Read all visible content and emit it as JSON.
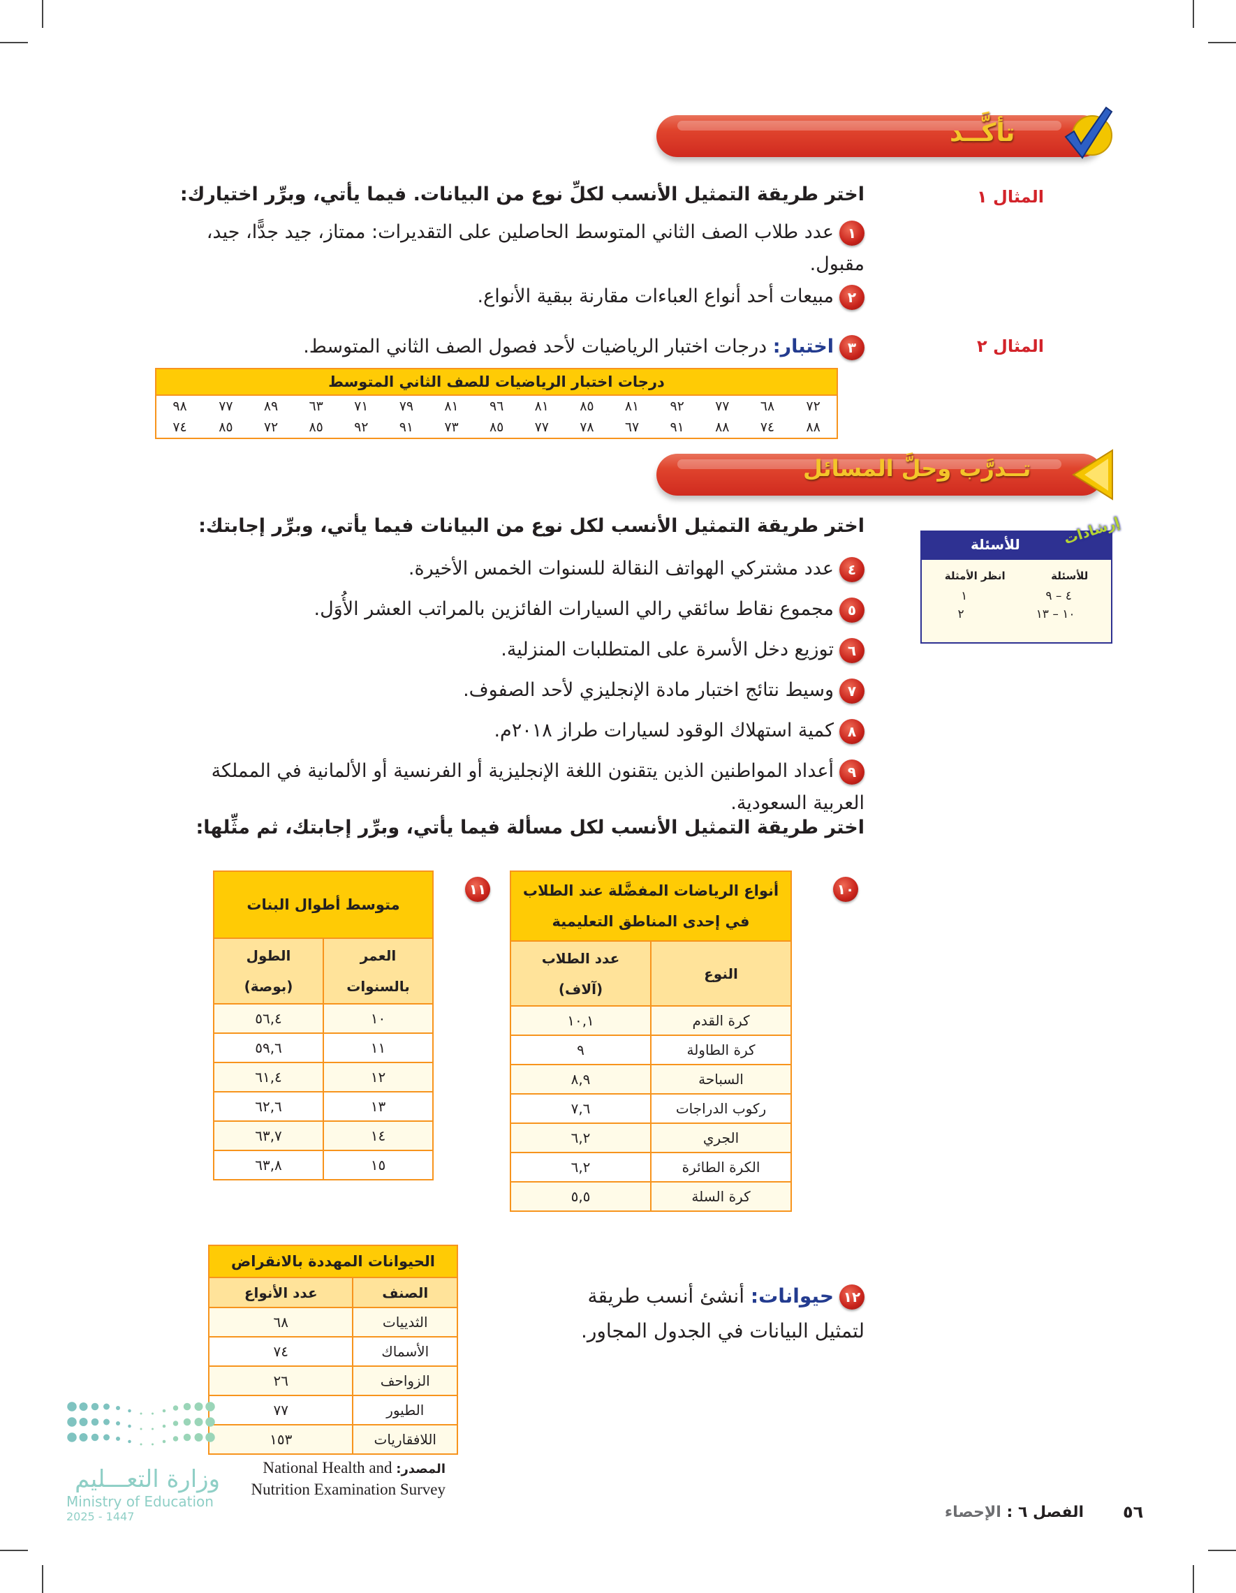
{
  "check_section": {
    "title": "تأكَّــد"
  },
  "example1": {
    "label": "المثال ١",
    "instruction": "اختر طريقة التمثيل الأنسب لكلِّ نوع من البيانات. فيما يأتي، وبرِّر اختيارك:",
    "items": [
      {
        "number": "١",
        "text": "عدد طلاب الصف الثاني المتوسط الحاصلين على التقديرات: ممتاز، جيد جدًّا، جيد، مقبول."
      },
      {
        "number": "٢",
        "text": "مبيعات أحد أنواع العباءات مقارنة ببقية الأنواع."
      }
    ]
  },
  "example2": {
    "label": "المثال ٢",
    "item": {
      "number": "٣",
      "keyword": "اختبار:",
      "text": "درجات اختبار الرياضيات لأحد فصول الصف الثاني المتوسط."
    },
    "table": {
      "title": "درجات اختبار الرياضيات للصف الثاني المتوسط",
      "rows": [
        [
          "٧٢",
          "٦٨",
          "٧٧",
          "٩٢",
          "٨١",
          "٨٥",
          "٨١",
          "٩٦",
          "٨١",
          "٧٩",
          "٧١",
          "٦٣",
          "٨٩",
          "٧٧",
          "٩٨"
        ],
        [
          "٨٨",
          "٧٤",
          "٨٨",
          "٩١",
          "٦٧",
          "٧٨",
          "٧٧",
          "٨٥",
          "٧٣",
          "٩١",
          "٩٢",
          "٨٥",
          "٧٢",
          "٨٥",
          "٧٤"
        ]
      ]
    }
  },
  "practice_section": {
    "title": "تــدرَّب وحلَّ المسائل"
  },
  "hint_box": {
    "tag": "إرشادات",
    "title": "للأسئلة",
    "headers": [
      "للأسئلة",
      "انظر الأمثلة"
    ],
    "rows": [
      [
        "٤ – ٩",
        "١"
      ],
      [
        "١٠ – ١٣",
        "٢"
      ]
    ]
  },
  "practice": {
    "instruction1": "اختر طريقة التمثيل الأنسب لكل نوع من البيانات فيما يأتي، وبرِّر إجابتك:",
    "items": [
      {
        "number": "٤",
        "text": "عدد مشتركي الهواتف النقالة للسنوات الخمس الأخيرة."
      },
      {
        "number": "٥",
        "text": "مجموع نقاط سائقي رالي السيارات الفائزين بالمراتب العشر الأُوَل."
      },
      {
        "number": "٦",
        "text": "توزيع دخل الأسرة على المتطلبات المنزلية."
      },
      {
        "number": "٧",
        "text": "وسيط نتائج اختبار مادة الإنجليزي لأحد الصفوف."
      },
      {
        "number": "٨",
        "text": "كمية استهلاك الوقود لسيارات طراز ٢٠١٨م."
      },
      {
        "number": "٩",
        "text": "أعداد المواطنين الذين يتقنون اللغة الإنجليزية أو الفرنسية أو الألمانية في المملكة العربية السعودية."
      }
    ],
    "instruction2": "اختر طريقة التمثيل الأنسب لكل مسألة فيما يأتي، وبرِّر إجابتك، ثم مثِّلها:"
  },
  "q10": {
    "number": "١٠",
    "title": "أنواع الرياضات المفضَّلة عند الطلاب في إحدى المناطق التعليمية",
    "headers": [
      "النوع",
      "عدد الطلاب (آلاف)"
    ],
    "rows": [
      [
        "كرة القدم",
        "١٠,١"
      ],
      [
        "كرة الطاولة",
        "٩"
      ],
      [
        "السباحة",
        "٨,٩"
      ],
      [
        "ركوب الدراجات",
        "٧,٦"
      ],
      [
        "الجري",
        "٦,٢"
      ],
      [
        "الكرة الطائرة",
        "٦,٢"
      ],
      [
        "كرة السلة",
        "٥,٥"
      ]
    ]
  },
  "q11": {
    "number": "١١",
    "title": "متوسط أطوال البنات",
    "headers": [
      "العمر بالسنوات",
      "الطول (بوصة)"
    ],
    "rows": [
      [
        "١٠",
        "٥٦,٤"
      ],
      [
        "١١",
        "٥٩,٦"
      ],
      [
        "١٢",
        "٦١,٤"
      ],
      [
        "١٣",
        "٦٢,٦"
      ],
      [
        "١٤",
        "٦٣,٧"
      ],
      [
        "١٥",
        "٦٣,٨"
      ]
    ]
  },
  "q12": {
    "number": "١٢",
    "keyword": "حيوانات:",
    "text": "أنشئ أنسب طريقة لتمثيل البيانات في الجدول المجاور.",
    "table": {
      "title": "الحيوانات المهددة بالانقراض",
      "headers": [
        "الصنف",
        "عدد الأنواع"
      ],
      "rows": [
        [
          "الثدييات",
          "٦٨"
        ],
        [
          "الأسماك",
          "٧٤"
        ],
        [
          "الزواحف",
          "٢٦"
        ],
        [
          "الطيور",
          "٧٧"
        ],
        [
          "اللافقاريات",
          "١٥٣"
        ]
      ]
    },
    "source_label": "المصدر:",
    "source_text": "National Health and Nutrition Examination Survey"
  },
  "logo": {
    "arabic": "وزارة التعـــليم",
    "english": "Ministry of Education",
    "year": "2025 - 1447"
  },
  "footer": {
    "page_number": "٥٦",
    "chapter": "الفصل ٦ :",
    "chapter_title": "الإحصاء"
  },
  "colors": {
    "red_label": "#d2232a",
    "keyword_blue": "#233b8f",
    "table_title": "#ffcb05",
    "table_border": "#f7941d",
    "hint_blue": "#2e3192"
  }
}
